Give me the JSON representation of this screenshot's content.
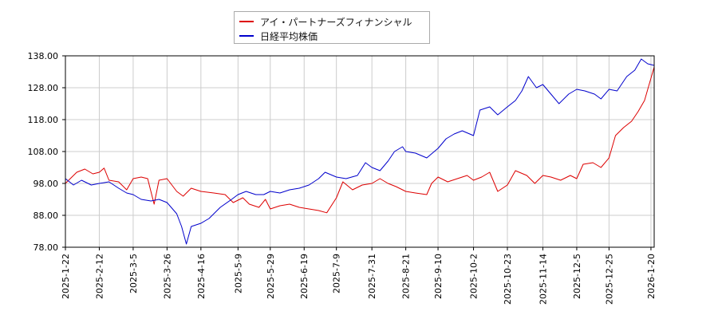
{
  "colors": {
    "series1": "#dd0000",
    "series2": "#0000cc",
    "grid": "#cccccc",
    "axis": "#000000"
  },
  "chart_data": {
    "type": "line",
    "grid": true,
    "legend_position": "top-center",
    "ylim": [
      78.0,
      138.0
    ],
    "yticks": [
      "78.00",
      "88.00",
      "98.00",
      "108.00",
      "118.00",
      "128.00",
      "138.00"
    ],
    "xlim": [
      "2025-01-22",
      "2026-01-22"
    ],
    "xticks": [
      "2025-1-22",
      "2025-2-12",
      "2025-3-5",
      "2025-3-26",
      "2025-4-16",
      "2025-5-9",
      "2025-5-29",
      "2025-6-19",
      "2025-7-9",
      "2025-7-31",
      "2025-8-21",
      "2025-9-10",
      "2025-10-2",
      "2025-10-23",
      "2025-11-14",
      "2025-12-5",
      "2025-12-25",
      "2026-1-20"
    ],
    "series": [
      {
        "name": "アイ・パートナーズフィナンシャル",
        "points": [
          [
            "2025-01-22",
            98.0
          ],
          [
            "2025-01-29",
            101.5
          ],
          [
            "2025-02-03",
            102.5
          ],
          [
            "2025-02-08",
            101.0
          ],
          [
            "2025-02-12",
            101.5
          ],
          [
            "2025-02-15",
            102.8
          ],
          [
            "2025-02-18",
            99.0
          ],
          [
            "2025-02-24",
            98.5
          ],
          [
            "2025-03-01",
            96.0
          ],
          [
            "2025-03-05",
            99.5
          ],
          [
            "2025-03-10",
            100.0
          ],
          [
            "2025-03-14",
            99.5
          ],
          [
            "2025-03-18",
            91.5
          ],
          [
            "2025-03-21",
            99.0
          ],
          [
            "2025-03-26",
            99.5
          ],
          [
            "2025-04-01",
            95.5
          ],
          [
            "2025-04-05",
            94.0
          ],
          [
            "2025-04-10",
            96.5
          ],
          [
            "2025-04-16",
            95.5
          ],
          [
            "2025-04-24",
            95.0
          ],
          [
            "2025-05-01",
            94.5
          ],
          [
            "2025-05-06",
            92.0
          ],
          [
            "2025-05-12",
            93.5
          ],
          [
            "2025-05-16",
            91.5
          ],
          [
            "2025-05-22",
            90.5
          ],
          [
            "2025-05-26",
            93.0
          ],
          [
            "2025-05-29",
            90.0
          ],
          [
            "2025-06-04",
            91.0
          ],
          [
            "2025-06-10",
            91.5
          ],
          [
            "2025-06-16",
            90.5
          ],
          [
            "2025-06-22",
            90.0
          ],
          [
            "2025-06-28",
            89.5
          ],
          [
            "2025-07-03",
            88.8
          ],
          [
            "2025-07-09",
            93.5
          ],
          [
            "2025-07-13",
            98.5
          ],
          [
            "2025-07-19",
            96.0
          ],
          [
            "2025-07-25",
            97.5
          ],
          [
            "2025-07-31",
            98.0
          ],
          [
            "2025-08-05",
            99.5
          ],
          [
            "2025-08-10",
            98.0
          ],
          [
            "2025-08-15",
            97.0
          ],
          [
            "2025-08-21",
            95.5
          ],
          [
            "2025-08-27",
            95.0
          ],
          [
            "2025-09-03",
            94.5
          ],
          [
            "2025-09-06",
            98.0
          ],
          [
            "2025-09-10",
            100.0
          ],
          [
            "2025-09-16",
            98.5
          ],
          [
            "2025-09-22",
            99.5
          ],
          [
            "2025-09-28",
            100.5
          ],
          [
            "2025-10-02",
            99.0
          ],
          [
            "2025-10-07",
            100.0
          ],
          [
            "2025-10-12",
            101.5
          ],
          [
            "2025-10-17",
            95.5
          ],
          [
            "2025-10-23",
            97.5
          ],
          [
            "2025-10-28",
            102.0
          ],
          [
            "2025-11-04",
            100.5
          ],
          [
            "2025-11-09",
            98.0
          ],
          [
            "2025-11-14",
            100.5
          ],
          [
            "2025-11-19",
            100.0
          ],
          [
            "2025-11-25",
            99.0
          ],
          [
            "2025-12-01",
            100.5
          ],
          [
            "2025-12-05",
            99.5
          ],
          [
            "2025-12-09",
            104.0
          ],
          [
            "2025-12-15",
            104.5
          ],
          [
            "2025-12-20",
            103.0
          ],
          [
            "2025-12-25",
            106.0
          ],
          [
            "2025-12-29",
            113.0
          ],
          [
            "2026-01-03",
            115.5
          ],
          [
            "2026-01-08",
            117.5
          ],
          [
            "2026-01-12",
            120.5
          ],
          [
            "2026-01-16",
            124.0
          ],
          [
            "2026-01-22",
            134.5
          ]
        ]
      },
      {
        "name": "日経平均株価",
        "points": [
          [
            "2025-01-22",
            99.5
          ],
          [
            "2025-01-27",
            97.5
          ],
          [
            "2025-02-01",
            99.0
          ],
          [
            "2025-02-07",
            97.5
          ],
          [
            "2025-02-12",
            98.0
          ],
          [
            "2025-02-18",
            98.5
          ],
          [
            "2025-02-24",
            96.5
          ],
          [
            "2025-03-01",
            95.0
          ],
          [
            "2025-03-05",
            94.5
          ],
          [
            "2025-03-10",
            93.0
          ],
          [
            "2025-03-16",
            92.5
          ],
          [
            "2025-03-21",
            93.0
          ],
          [
            "2025-03-26",
            92.0
          ],
          [
            "2025-04-01",
            88.5
          ],
          [
            "2025-04-04",
            84.5
          ],
          [
            "2025-04-07",
            79.0
          ],
          [
            "2025-04-10",
            84.5
          ],
          [
            "2025-04-16",
            85.5
          ],
          [
            "2025-04-21",
            87.0
          ],
          [
            "2025-04-28",
            90.5
          ],
          [
            "2025-05-05",
            93.0
          ],
          [
            "2025-05-09",
            94.5
          ],
          [
            "2025-05-14",
            95.5
          ],
          [
            "2025-05-20",
            94.5
          ],
          [
            "2025-05-25",
            94.5
          ],
          [
            "2025-05-29",
            95.5
          ],
          [
            "2025-06-04",
            95.0
          ],
          [
            "2025-06-10",
            96.0
          ],
          [
            "2025-06-16",
            96.5
          ],
          [
            "2025-06-22",
            97.5
          ],
          [
            "2025-06-28",
            99.5
          ],
          [
            "2025-07-02",
            101.5
          ],
          [
            "2025-07-09",
            100.0
          ],
          [
            "2025-07-15",
            99.5
          ],
          [
            "2025-07-22",
            100.5
          ],
          [
            "2025-07-27",
            104.5
          ],
          [
            "2025-07-31",
            103.0
          ],
          [
            "2025-08-05",
            102.0
          ],
          [
            "2025-08-10",
            105.0
          ],
          [
            "2025-08-14",
            108.0
          ],
          [
            "2025-08-19",
            109.5
          ],
          [
            "2025-08-21",
            108.0
          ],
          [
            "2025-08-27",
            107.5
          ],
          [
            "2025-09-03",
            106.0
          ],
          [
            "2025-09-10",
            109.0
          ],
          [
            "2025-09-15",
            112.0
          ],
          [
            "2025-09-20",
            113.5
          ],
          [
            "2025-09-25",
            114.5
          ],
          [
            "2025-10-02",
            113.0
          ],
          [
            "2025-10-06",
            121.0
          ],
          [
            "2025-10-12",
            122.0
          ],
          [
            "2025-10-17",
            119.5
          ],
          [
            "2025-10-23",
            122.0
          ],
          [
            "2025-10-28",
            124.0
          ],
          [
            "2025-11-01",
            127.0
          ],
          [
            "2025-11-05",
            131.5
          ],
          [
            "2025-11-10",
            128.0
          ],
          [
            "2025-11-14",
            129.0
          ],
          [
            "2025-11-19",
            126.0
          ],
          [
            "2025-11-24",
            123.0
          ],
          [
            "2025-11-30",
            126.0
          ],
          [
            "2025-12-05",
            127.5
          ],
          [
            "2025-12-10",
            127.0
          ],
          [
            "2025-12-16",
            126.0
          ],
          [
            "2025-12-20",
            124.5
          ],
          [
            "2025-12-25",
            127.5
          ],
          [
            "2025-12-30",
            127.0
          ],
          [
            "2026-01-05",
            131.5
          ],
          [
            "2026-01-10",
            133.5
          ],
          [
            "2026-01-14",
            137.0
          ],
          [
            "2026-01-18",
            135.5
          ],
          [
            "2026-01-22",
            135.0
          ]
        ]
      }
    ]
  }
}
